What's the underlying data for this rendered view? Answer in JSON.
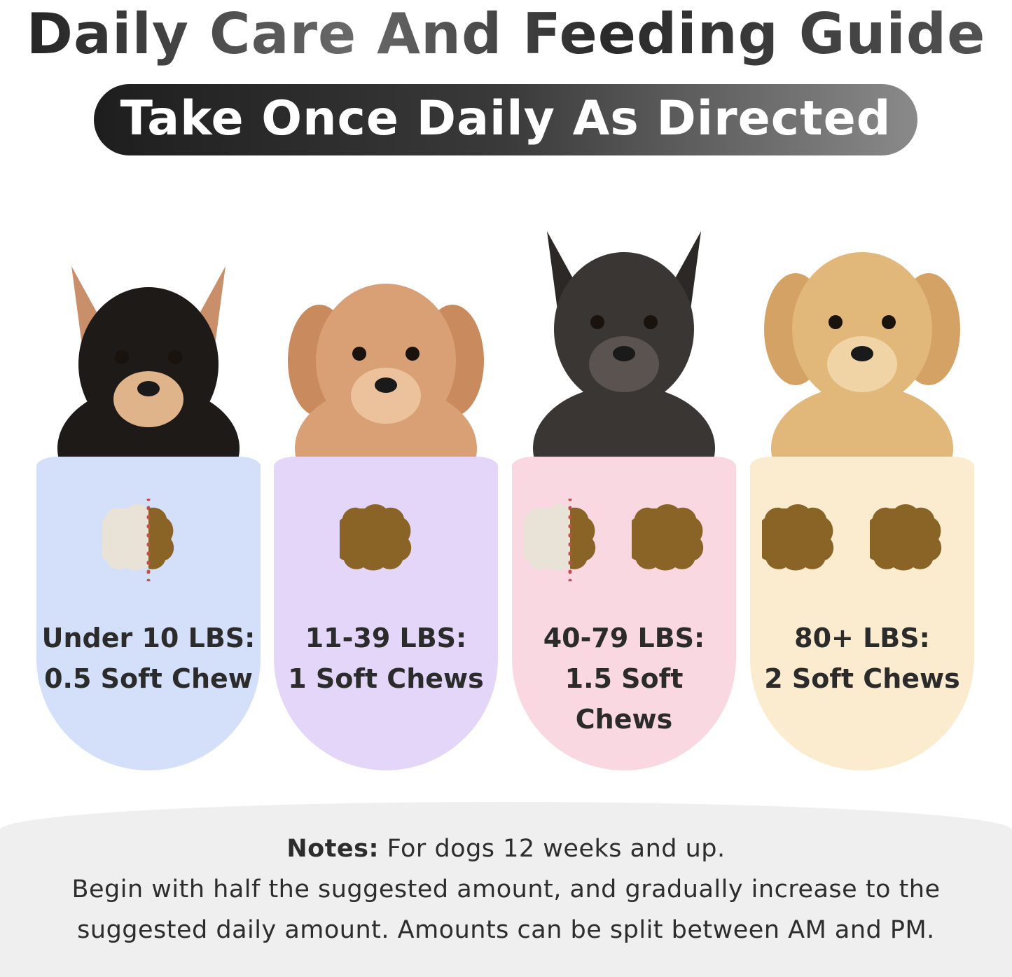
{
  "title": "Daily Care And Feeding Guide",
  "subtitle": "Take Once Daily As Directed",
  "cards": [
    {
      "weight": "Under 10 LBS:",
      "dose": "0.5 Soft Chew",
      "chews": 0.5,
      "color": "#d4e0fa",
      "dog": "chihuahua"
    },
    {
      "weight": "11-39 LBS:",
      "dose": "1 Soft Chews",
      "chews": 1,
      "color": "#e4d6f8",
      "dog": "poodle"
    },
    {
      "weight": "40-79 LBS:",
      "dose": "1.5 Soft Chews",
      "chews": 1.5,
      "color": "#f9d8e1",
      "dog": "french-bulldog"
    },
    {
      "weight": "80+ LBS:",
      "dose": "2 Soft Chews",
      "chews": 2,
      "color": "#fbeccf",
      "dog": "golden-retriever"
    }
  ],
  "notes": {
    "label": "Notes:",
    "line1": " For dogs 12 weeks and up.",
    "line2": "Begin with half the suggested amount, and gradually increase to the",
    "line3": "suggested daily amount. Amounts can be split between AM and PM."
  }
}
